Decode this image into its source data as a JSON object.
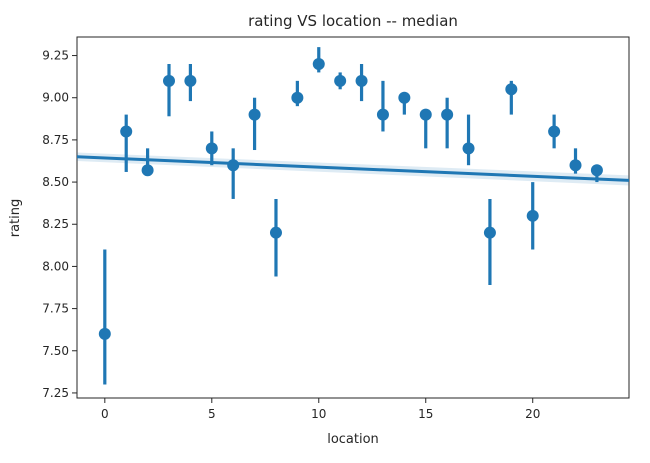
{
  "chart_data": {
    "type": "scatter",
    "title": "rating VS location -- median",
    "xlabel": "location",
    "ylabel": "rating",
    "xlim": [
      -1.3,
      24.5
    ],
    "ylim": [
      7.22,
      9.36
    ],
    "xticks": [
      0,
      5,
      10,
      15,
      20
    ],
    "xtick_labels": [
      "0",
      "5",
      "10",
      "15",
      "20"
    ],
    "yticks": [
      7.25,
      7.5,
      7.75,
      8.0,
      8.25,
      8.5,
      8.75,
      9.0,
      9.25
    ],
    "ytick_labels": [
      "7.25",
      "7.50",
      "7.75",
      "8.00",
      "8.25",
      "8.50",
      "8.75",
      "9.00",
      "9.25"
    ],
    "grid": false,
    "color": "#1f77b4",
    "points": [
      {
        "x": 0,
        "y": 7.6,
        "lo": 7.3,
        "hi": 8.1
      },
      {
        "x": 1,
        "y": 8.8,
        "lo": 8.56,
        "hi": 8.9
      },
      {
        "x": 2,
        "y": 8.57,
        "lo": 8.55,
        "hi": 8.7
      },
      {
        "x": 3,
        "y": 9.1,
        "lo": 8.89,
        "hi": 9.2
      },
      {
        "x": 4,
        "y": 9.1,
        "lo": 8.98,
        "hi": 9.2
      },
      {
        "x": 5,
        "y": 8.7,
        "lo": 8.6,
        "hi": 8.8
      },
      {
        "x": 6,
        "y": 8.6,
        "lo": 8.4,
        "hi": 8.7
      },
      {
        "x": 7,
        "y": 8.9,
        "lo": 8.69,
        "hi": 9.0
      },
      {
        "x": 8,
        "y": 8.2,
        "lo": 7.94,
        "hi": 8.4
      },
      {
        "x": 9,
        "y": 9.0,
        "lo": 8.95,
        "hi": 9.1
      },
      {
        "x": 10,
        "y": 9.2,
        "lo": 9.15,
        "hi": 9.3
      },
      {
        "x": 11,
        "y": 9.1,
        "lo": 9.05,
        "hi": 9.15
      },
      {
        "x": 12,
        "y": 9.1,
        "lo": 8.98,
        "hi": 9.2
      },
      {
        "x": 13,
        "y": 8.9,
        "lo": 8.8,
        "hi": 9.1
      },
      {
        "x": 14,
        "y": 9.0,
        "lo": 8.9,
        "hi": 9.0
      },
      {
        "x": 15,
        "y": 8.9,
        "lo": 8.7,
        "hi": 8.9
      },
      {
        "x": 16,
        "y": 8.9,
        "lo": 8.7,
        "hi": 9.0
      },
      {
        "x": 17,
        "y": 8.7,
        "lo": 8.6,
        "hi": 8.9
      },
      {
        "x": 18,
        "y": 8.2,
        "lo": 7.89,
        "hi": 8.4
      },
      {
        "x": 19,
        "y": 9.05,
        "lo": 8.9,
        "hi": 9.1
      },
      {
        "x": 20,
        "y": 8.3,
        "lo": 8.1,
        "hi": 8.5
      },
      {
        "x": 21,
        "y": 8.8,
        "lo": 8.7,
        "hi": 8.9
      },
      {
        "x": 22,
        "y": 8.6,
        "lo": 8.55,
        "hi": 8.7
      },
      {
        "x": 23,
        "y": 8.57,
        "lo": 8.5,
        "hi": 8.6
      }
    ],
    "regression": {
      "x": [
        -1.3,
        24.5
      ],
      "y": [
        8.65,
        8.51
      ],
      "ci_upper": [
        8.675,
        8.54
      ],
      "ci_lower": [
        8.625,
        8.48
      ]
    }
  }
}
